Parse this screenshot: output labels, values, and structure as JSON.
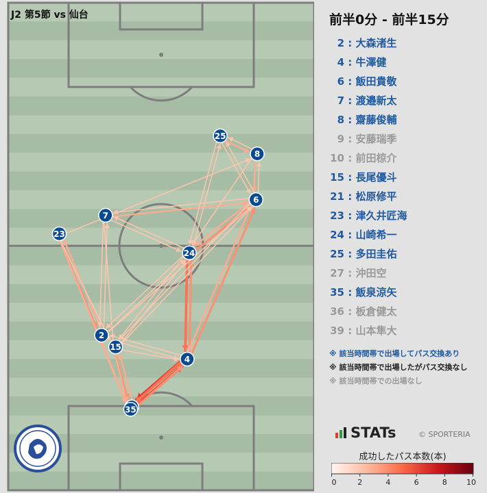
{
  "chart_title": "J2 第5節 vs 仙台",
  "period_title": "前半0分 - 前半15分",
  "colors": {
    "pitch_light": "#b5c9b3",
    "pitch_dark": "#a6bca4",
    "line": "#7d7d7d",
    "played_passed": "#1f5aa0",
    "played_no_pass": "#222222",
    "not_played": "#999999",
    "node_fill": "#0b4a8f"
  },
  "players": [
    {
      "number": "2",
      "name": "大森渚生",
      "status": "played_passed"
    },
    {
      "number": "4",
      "name": "牛澤健",
      "status": "played_passed"
    },
    {
      "number": "6",
      "name": "飯田貴敬",
      "status": "played_passed"
    },
    {
      "number": "7",
      "name": "渡邉新太",
      "status": "played_passed"
    },
    {
      "number": "8",
      "name": "齋藤俊輔",
      "status": "played_passed"
    },
    {
      "number": "9",
      "name": "安藤瑞季",
      "status": "not_played"
    },
    {
      "number": "10",
      "name": "前田椋介",
      "status": "not_played"
    },
    {
      "number": "15",
      "name": "長尾優斗",
      "status": "played_passed"
    },
    {
      "number": "21",
      "name": "松原修平",
      "status": "played_passed"
    },
    {
      "number": "23",
      "name": "津久井匠海",
      "status": "played_passed"
    },
    {
      "number": "24",
      "name": "山崎希一",
      "status": "played_passed"
    },
    {
      "number": "25",
      "name": "多田圭佑",
      "status": "played_passed"
    },
    {
      "number": "27",
      "name": "沖田空",
      "status": "not_played"
    },
    {
      "number": "35",
      "name": "飯泉涼矢",
      "status": "played_passed"
    },
    {
      "number": "36",
      "name": "板倉健太",
      "status": "not_played"
    },
    {
      "number": "39",
      "name": "山本隼大",
      "status": "not_played"
    }
  ],
  "legend_notes": [
    {
      "text": "※ 該当時間帯で出場してパス交換あり",
      "status": "played_passed"
    },
    {
      "text": "※ 該当時間帯で出場したがパス交換なし",
      "status": "played_no_pass"
    },
    {
      "text": "※ 該当時間帯での出場なし",
      "status": "not_played"
    }
  ],
  "brand": {
    "stats": "STATs",
    "credit": "© SPORTERIA",
    "club_emblem": "mito-hollyhock-emblem"
  },
  "colorbar": {
    "label": "成功したパス本数(本)",
    "min": 0,
    "max": 10,
    "ticks": [
      "0",
      "2",
      "4",
      "6",
      "8",
      "10"
    ]
  },
  "chart_data": {
    "type": "pass-network",
    "x_range": [
      0,
      100
    ],
    "y_range": [
      0,
      100
    ],
    "nodes": [
      {
        "id": "2",
        "x": 30.5,
        "y": 68.2
      },
      {
        "id": "4",
        "x": 58.5,
        "y": 73.1
      },
      {
        "id": "6",
        "x": 81.0,
        "y": 40.4
      },
      {
        "id": "7",
        "x": 31.8,
        "y": 43.6
      },
      {
        "id": "8",
        "x": 81.4,
        "y": 31.0
      },
      {
        "id": "15",
        "x": 35.1,
        "y": 70.6
      },
      {
        "id": "21",
        "x": 40.4,
        "y": 82.9
      },
      {
        "id": "23",
        "x": 16.7,
        "y": 47.4
      },
      {
        "id": "24",
        "x": 59.2,
        "y": 51.3
      },
      {
        "id": "25",
        "x": 69.3,
        "y": 27.3
      },
      {
        "id": "35",
        "x": 40.0,
        "y": 83.4
      }
    ],
    "passes": [
      {
        "from": "4",
        "to": "21",
        "count": 6
      },
      {
        "from": "21",
        "to": "4",
        "count": 5
      },
      {
        "from": "4",
        "to": "35",
        "count": 4
      },
      {
        "from": "35",
        "to": "4",
        "count": 3
      },
      {
        "from": "24",
        "to": "4",
        "count": 4
      },
      {
        "from": "4",
        "to": "24",
        "count": 3
      },
      {
        "from": "4",
        "to": "6",
        "count": 3
      },
      {
        "from": "6",
        "to": "4",
        "count": 2
      },
      {
        "from": "24",
        "to": "6",
        "count": 3
      },
      {
        "from": "6",
        "to": "24",
        "count": 2
      },
      {
        "from": "23",
        "to": "2",
        "count": 3
      },
      {
        "from": "2",
        "to": "23",
        "count": 2
      },
      {
        "from": "15",
        "to": "21",
        "count": 3
      },
      {
        "from": "21",
        "to": "15",
        "count": 2
      },
      {
        "from": "2",
        "to": "35",
        "count": 2
      },
      {
        "from": "23",
        "to": "35",
        "count": 2
      },
      {
        "from": "15",
        "to": "35",
        "count": 2
      },
      {
        "from": "7",
        "to": "6",
        "count": 2
      },
      {
        "from": "6",
        "to": "7",
        "count": 1
      },
      {
        "from": "8",
        "to": "6",
        "count": 2
      },
      {
        "from": "6",
        "to": "8",
        "count": 1
      },
      {
        "from": "25",
        "to": "8",
        "count": 2
      },
      {
        "from": "8",
        "to": "25",
        "count": 1
      },
      {
        "from": "25",
        "to": "6",
        "count": 1
      },
      {
        "from": "6",
        "to": "25",
        "count": 1
      },
      {
        "from": "25",
        "to": "24",
        "count": 1
      },
      {
        "from": "24",
        "to": "25",
        "count": 1
      },
      {
        "from": "8",
        "to": "24",
        "count": 1
      },
      {
        "from": "23",
        "to": "8",
        "count": 1
      },
      {
        "from": "7",
        "to": "2",
        "count": 1
      },
      {
        "from": "2",
        "to": "7",
        "count": 1
      },
      {
        "from": "7",
        "to": "15",
        "count": 1
      },
      {
        "from": "2",
        "to": "24",
        "count": 1
      },
      {
        "from": "24",
        "to": "2",
        "count": 1
      },
      {
        "from": "15",
        "to": "24",
        "count": 1
      },
      {
        "from": "24",
        "to": "15",
        "count": 1
      },
      {
        "from": "15",
        "to": "6",
        "count": 1
      },
      {
        "from": "2",
        "to": "6",
        "count": 1
      },
      {
        "from": "2",
        "to": "4",
        "count": 1
      },
      {
        "from": "4",
        "to": "2",
        "count": 1
      },
      {
        "from": "15",
        "to": "4",
        "count": 1
      },
      {
        "from": "23",
        "to": "15",
        "count": 1
      },
      {
        "from": "7",
        "to": "24",
        "count": 1
      },
      {
        "from": "24",
        "to": "7",
        "count": 1
      },
      {
        "from": "6",
        "to": "15",
        "count": 1
      }
    ]
  }
}
